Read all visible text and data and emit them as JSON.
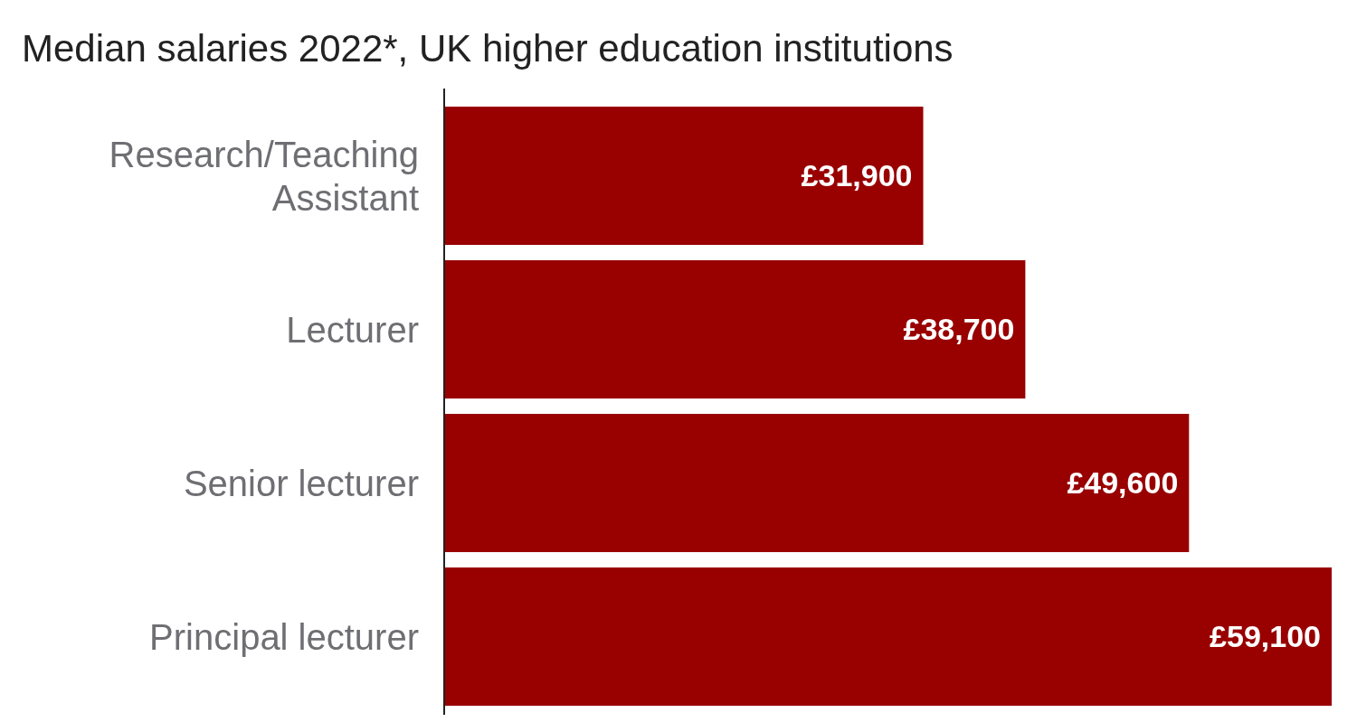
{
  "chart_data": {
    "type": "bar",
    "orientation": "horizontal",
    "title": "Median salaries 2022*, UK higher education institutions",
    "categories": [
      "Research/Teaching\nAssistant",
      "Lecturer",
      "Senior lecturer",
      "Principal lecturer"
    ],
    "values": [
      31900,
      38700,
      49600,
      59100
    ],
    "value_labels": [
      "£31,900",
      "£38,700",
      "£49,600",
      "£59,100"
    ],
    "color": "#990000"
  }
}
